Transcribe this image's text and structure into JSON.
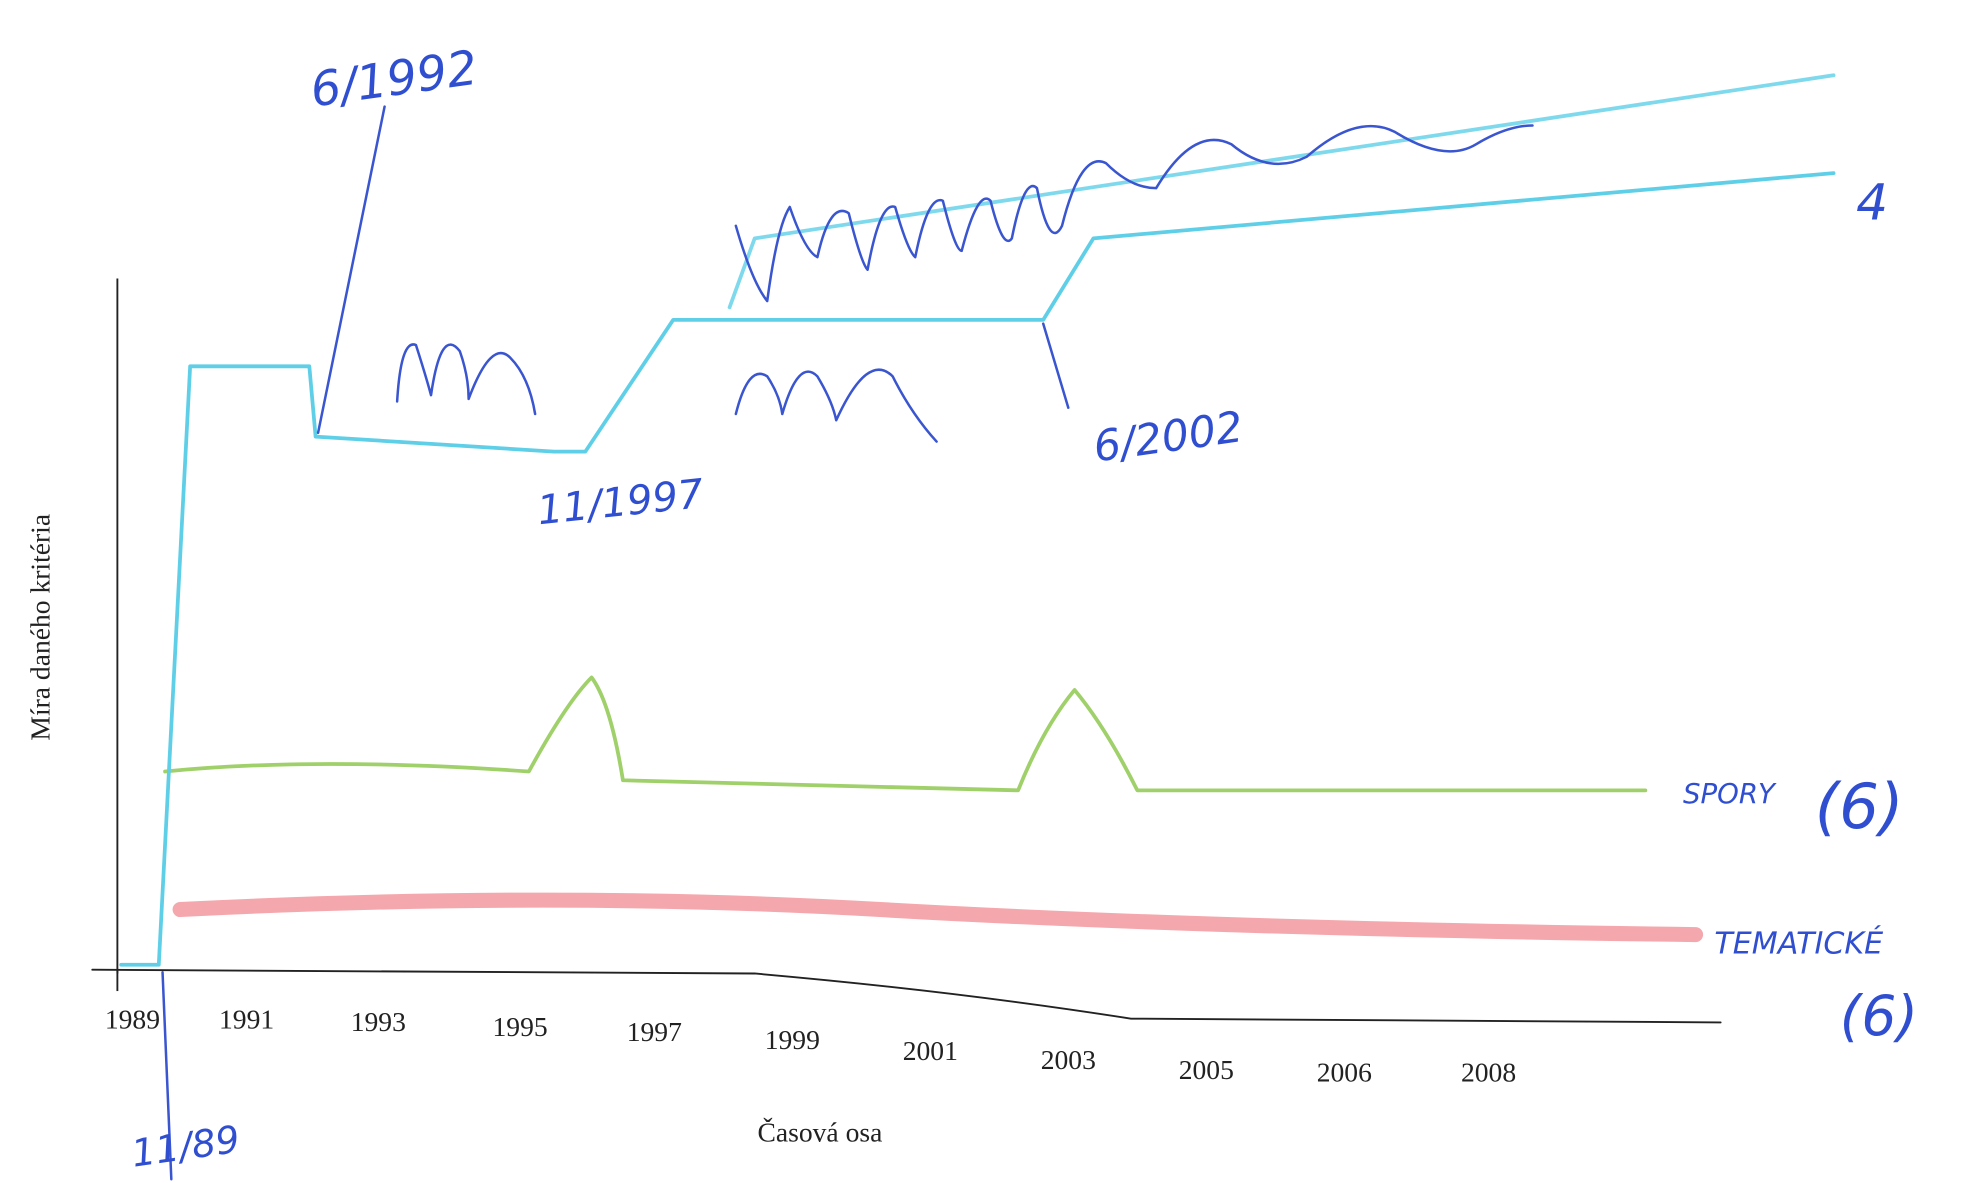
{
  "axes": {
    "y_label": "Míra daného kritéria",
    "x_label": "Časová osa",
    "x_ticks": [
      "1989",
      "1991",
      "1993",
      "1995",
      "1997",
      "1999",
      "2001",
      "2003",
      "2005",
      "2006",
      "2008"
    ]
  },
  "annotations": [
    "6/1992",
    "11/1997",
    "6/2002",
    "11/89",
    "4"
  ],
  "series_labels": [
    "SPORY",
    "(6)",
    "TEMATICKÉ",
    "(6)"
  ]
}
